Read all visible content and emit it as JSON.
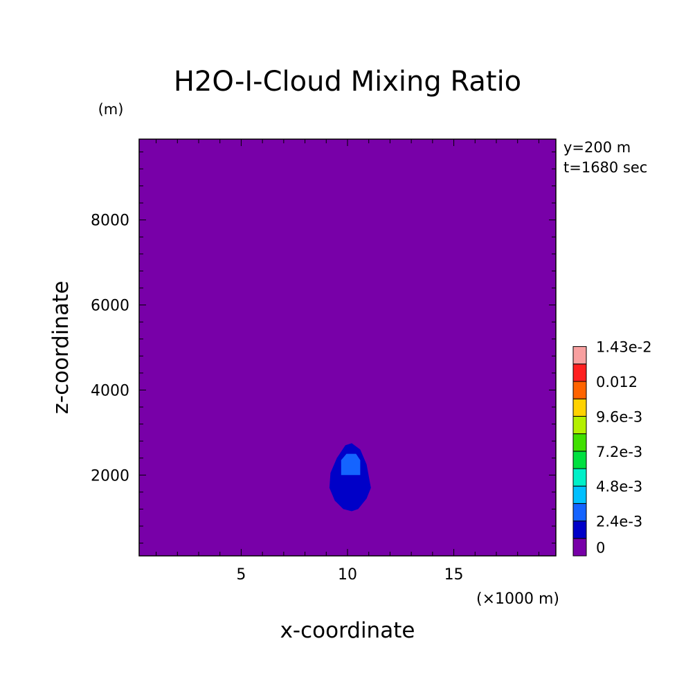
{
  "chart_data": {
    "type": "heatmap",
    "title": "H2O-I-Cloud Mixing Ratio",
    "xlabel": "x-coordinate",
    "ylabel": "z-coordinate",
    "xunit": "(×1000 m)",
    "yunit": "(m)",
    "annotations": [
      "y=200 m",
      "t=1680 sec"
    ],
    "xlim": [
      0.2,
      19.8
    ],
    "ylim": [
      100,
      9900
    ],
    "xticks": [
      5,
      10,
      15
    ],
    "xtick_labels": [
      "5",
      "10",
      "15"
    ],
    "yticks": [
      2000,
      4000,
      6000,
      8000
    ],
    "ytick_labels": [
      "2000",
      "4000",
      "6000",
      "8000"
    ],
    "background_level": 0,
    "contours": [
      {
        "name": "2.4e-3",
        "color": "#0000c8",
        "points": [
          [
            9.5,
            2400
          ],
          [
            9.9,
            2700
          ],
          [
            10.2,
            2750
          ],
          [
            10.6,
            2600
          ],
          [
            10.9,
            2250
          ],
          [
            11.1,
            1700
          ],
          [
            10.9,
            1450
          ],
          [
            10.5,
            1200
          ],
          [
            10.2,
            1150
          ],
          [
            9.8,
            1200
          ],
          [
            9.4,
            1400
          ],
          [
            9.15,
            1700
          ],
          [
            9.2,
            2050
          ]
        ]
      },
      {
        "name": "4.8e-3",
        "color": "#1464ff",
        "points": [
          [
            9.7,
            2350
          ],
          [
            9.95,
            2500
          ],
          [
            10.4,
            2500
          ],
          [
            10.6,
            2350
          ],
          [
            10.6,
            2000
          ],
          [
            9.7,
            2000
          ]
        ]
      }
    ],
    "colorbar": {
      "levels": [
        {
          "label": "0",
          "color": "#7800a8"
        },
        {
          "label": "",
          "color": "#0000c8"
        },
        {
          "label": "2.4e-3",
          "color": "#1464ff"
        },
        {
          "label": "",
          "color": "#00c0ff"
        },
        {
          "label": "4.8e-3",
          "color": "#00f0c8"
        },
        {
          "label": "",
          "color": "#00e040"
        },
        {
          "label": "7.2e-3",
          "color": "#40e000"
        },
        {
          "label": "",
          "color": "#b4f000"
        },
        {
          "label": "9.6e-3",
          "color": "#ffd200"
        },
        {
          "label": "",
          "color": "#ff6400"
        },
        {
          "label": "0.012",
          "color": "#ff2020"
        },
        {
          "label": "",
          "color": "#f8a0a0"
        },
        {
          "label": "1.43e-2",
          "color": ""
        }
      ]
    },
    "colors": {
      "background": "#7800a8"
    }
  }
}
